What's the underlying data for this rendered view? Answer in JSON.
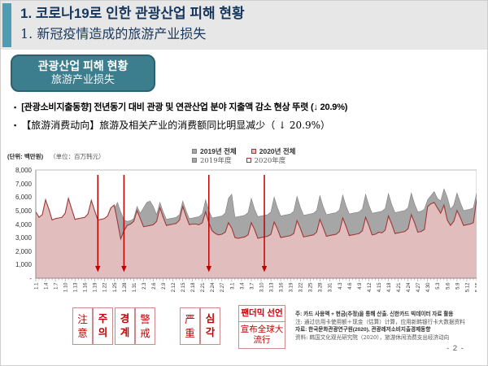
{
  "header": {
    "title_ko": "1.  코로나19로 인한 관광산업 피해 현황",
    "title_zh": "1.  新冠疫情造成的旅游产业损失"
  },
  "badge": {
    "line1": "관광산업 피해 현황",
    "line2": "旅游产业损失"
  },
  "bullet_marker": "▪",
  "bullets": [
    {
      "text": "[관광소비지출동향] 전년동기 대비  관광 및 연관산업 분야 지출액 감소 현상 뚜렷 (↓ 20.9%)"
    },
    {
      "text": "【旅游消费动向】旅游及相关产业的消费额同比明显减少（ ↓  20.9%）"
    }
  ],
  "chart": {
    "unit_ko": "(단위: 백만원)",
    "unit_zh": "（单位：百万韩元）",
    "legend": [
      {
        "label_ko": "2019년 전체",
        "label_zh": "2019年度",
        "color": "#a6a6a6",
        "line": "#7f7f7f"
      },
      {
        "label_ko": "2020년 전체",
        "label_zh": "2020年度",
        "color": "#e2bdbd",
        "line": "#9c3a38"
      }
    ]
  },
  "chart_data": {
    "type": "area",
    "title": "",
    "xlabel": "",
    "ylabel": "백만원 (百万韩元)",
    "ylim": [
      0,
      8000
    ],
    "y_ticks": [
      "8,000",
      "7,000",
      "6,000",
      "5,000",
      "4,000",
      "3,000",
      "2,000",
      "1,000",
      "-"
    ],
    "tick_every": 3,
    "grid": false,
    "legend_position": "top",
    "arrow_color": "#c00000",
    "x": [
      "1.1",
      "1.2",
      "1.3",
      "1.4",
      "1.5",
      "1.6",
      "1.7",
      "1.8",
      "1.9",
      "1.10",
      "1.11",
      "1.12",
      "1.13",
      "1.14",
      "1.15",
      "1.16",
      "1.17",
      "1.18",
      "1.19",
      "1.20",
      "1.21",
      "1.22",
      "1.23",
      "1.24",
      "1.25",
      "1.26",
      "1.27",
      "1.28",
      "1.29",
      "1.30",
      "1.31",
      "2.1",
      "2.2",
      "2.3",
      "2.4",
      "2.5",
      "2.6",
      "2.7",
      "2.8",
      "2.9",
      "2.10",
      "2.11",
      "2.12",
      "2.13",
      "2.14",
      "2.15",
      "2.16",
      "2.17",
      "2.18",
      "2.19",
      "2.20",
      "2.21",
      "2.22",
      "2.23",
      "2.24",
      "2.25",
      "2.26",
      "2.27",
      "2.28",
      "2.29",
      "3.1",
      "3.2",
      "3.3",
      "3.4",
      "3.5",
      "3.6",
      "3.7",
      "3.8",
      "3.9",
      "3.10",
      "3.11",
      "3.12",
      "3.13",
      "3.14",
      "3.15",
      "3.16",
      "3.17",
      "3.18",
      "3.19",
      "3.20",
      "3.21",
      "3.22",
      "3.23",
      "3.24",
      "3.25",
      "3.26",
      "3.27",
      "3.28",
      "3.29",
      "3.30",
      "3.31",
      "4.1",
      "4.2",
      "4.3",
      "4.4",
      "4.5",
      "4.6",
      "4.7",
      "4.8",
      "4.9",
      "4.10",
      "4.11",
      "4.12",
      "4.13",
      "4.14",
      "4.15",
      "4.16",
      "4.17",
      "4.18",
      "4.19",
      "4.20",
      "4.21",
      "4.22",
      "4.23",
      "4.24",
      "4.25",
      "4.26",
      "4.27",
      "4.28",
      "4.29",
      "4.30",
      "5.1",
      "5.2",
      "5.3",
      "5.4",
      "5.5",
      "5.6",
      "5.7",
      "5.8",
      "5.9",
      "5.10",
      "5.11",
      "5.12",
      "5.13",
      "5.14",
      "5.15"
    ],
    "series": [
      {
        "name": "2019년 전체 (2019年度)",
        "color": "#a6a6a6",
        "line_color": "#7f7f7f",
        "values": [
          4700,
          4300,
          4500,
          5500,
          4900,
          4150,
          4200,
          4250,
          4300,
          4600,
          5600,
          4900,
          4200,
          4250,
          4300,
          4350,
          4550,
          5500,
          4850,
          4150,
          4200,
          4250,
          4400,
          4900,
          5100,
          5600,
          4900,
          4300,
          4200,
          4250,
          4400,
          5300,
          4800,
          5200,
          5600,
          5700,
          5300,
          4700,
          5600,
          4900,
          4350,
          4400,
          4450,
          4500,
          4700,
          5700,
          5000,
          4400,
          4450,
          4500,
          4550,
          4750,
          5800,
          5000,
          4450,
          4500,
          4550,
          4600,
          4800,
          5900,
          6200,
          4500,
          4550,
          4600,
          4650,
          4850,
          5900,
          5100,
          4550,
          4600,
          4650,
          4700,
          4900,
          6000,
          5200,
          4600,
          4650,
          4700,
          4750,
          4950,
          6050,
          5250,
          4650,
          4700,
          4750,
          4800,
          5000,
          6100,
          5300,
          4700,
          4750,
          4800,
          4850,
          5050,
          6150,
          5350,
          4750,
          4800,
          4850,
          4900,
          5100,
          6200,
          5400,
          4800,
          4850,
          4900,
          4950,
          5150,
          6250,
          5450,
          4850,
          4900,
          4950,
          5000,
          5200,
          6300,
          5500,
          4900,
          4950,
          5100,
          5800,
          6100,
          6400,
          5900,
          5700,
          6600,
          6000,
          5100,
          5400,
          6300,
          5600,
          5000,
          5050,
          5100,
          5200,
          6300
        ]
      },
      {
        "name": "2020년 전체 (2020年度)",
        "color": "#e2bdbd",
        "line_color": "#9c3a38",
        "values": [
          4900,
          4500,
          4700,
          5800,
          5100,
          4300,
          4400,
          4450,
          4500,
          4800,
          5900,
          5100,
          4350,
          4400,
          4450,
          4500,
          4750,
          5750,
          5000,
          4300,
          4350,
          4400,
          4600,
          5200,
          5400,
          4200,
          2900,
          3500,
          3900,
          4000,
          4200,
          5000,
          4400,
          3800,
          3850,
          3900,
          3950,
          4200,
          5200,
          4500,
          3900,
          3950,
          4000,
          4050,
          4300,
          5300,
          4600,
          3950,
          4000,
          4000,
          3950,
          4100,
          4900,
          4100,
          3500,
          3300,
          3200,
          3250,
          3400,
          4100,
          3700,
          3000,
          2950,
          3000,
          3050,
          3200,
          4100,
          3600,
          2950,
          3000,
          3050,
          3100,
          3250,
          4150,
          3650,
          3000,
          3050,
          3100,
          3150,
          3300,
          4250,
          3700,
          3050,
          3100,
          3150,
          3200,
          3400,
          4350,
          3750,
          3100,
          3150,
          3200,
          3250,
          3450,
          4450,
          3850,
          3150,
          3200,
          3250,
          3300,
          3500,
          4500,
          3900,
          3200,
          3250,
          3400,
          3350,
          3550,
          4600,
          4000,
          3300,
          3350,
          3400,
          3450,
          3650,
          4700,
          4100,
          3400,
          3450,
          3600,
          5300,
          5500,
          5600,
          5200,
          4800,
          5400,
          4300,
          3900,
          4200,
          5000,
          4500,
          3900,
          3950,
          4000,
          4100,
          5800
        ]
      }
    ],
    "event_arrows": [
      {
        "date": "1.20",
        "index": 19
      },
      {
        "date": "1.28",
        "index": 27
      },
      {
        "date": "2.23",
        "index": 53
      },
      {
        "date": "3.11",
        "index": 70
      }
    ]
  },
  "alerts": {
    "boxes": [
      {
        "cells": [
          {
            "text": "注意",
            "lang": "zh"
          },
          {
            "text": "주의",
            "lang": "ko"
          }
        ]
      },
      {
        "cells": [
          {
            "text": "경계",
            "lang": "ko"
          },
          {
            "text": "警戒",
            "lang": "zh"
          }
        ]
      },
      {
        "cells": [
          {
            "text": "严重",
            "lang": "zh"
          },
          {
            "text": "심각",
            "lang": "ko"
          }
        ]
      }
    ],
    "pandemic": {
      "ko": "팬더믹 선언",
      "zh": "宣布全球大流行"
    }
  },
  "footnotes": [
    {
      "text": "주: 카드 사용액 + 현금(추정)을 통해 산출. 신한카드 빅데이터 자료 활용",
      "lang": "ko"
    },
    {
      "text": "注: 通过信用卡使用额＋现金（估算）计算，应用新韩银行卡大数据资料",
      "lang": "zh"
    },
    {
      "text": "자료: 한국문화관광연구원(2020), 관광레저소비지출경제동향",
      "lang": "ko"
    },
    {
      "text": "资料: 韩国文化观光研究院（2020），旅游休闲消费支出经济动向",
      "lang": "zh"
    }
  ],
  "page_number": "- 2 -"
}
